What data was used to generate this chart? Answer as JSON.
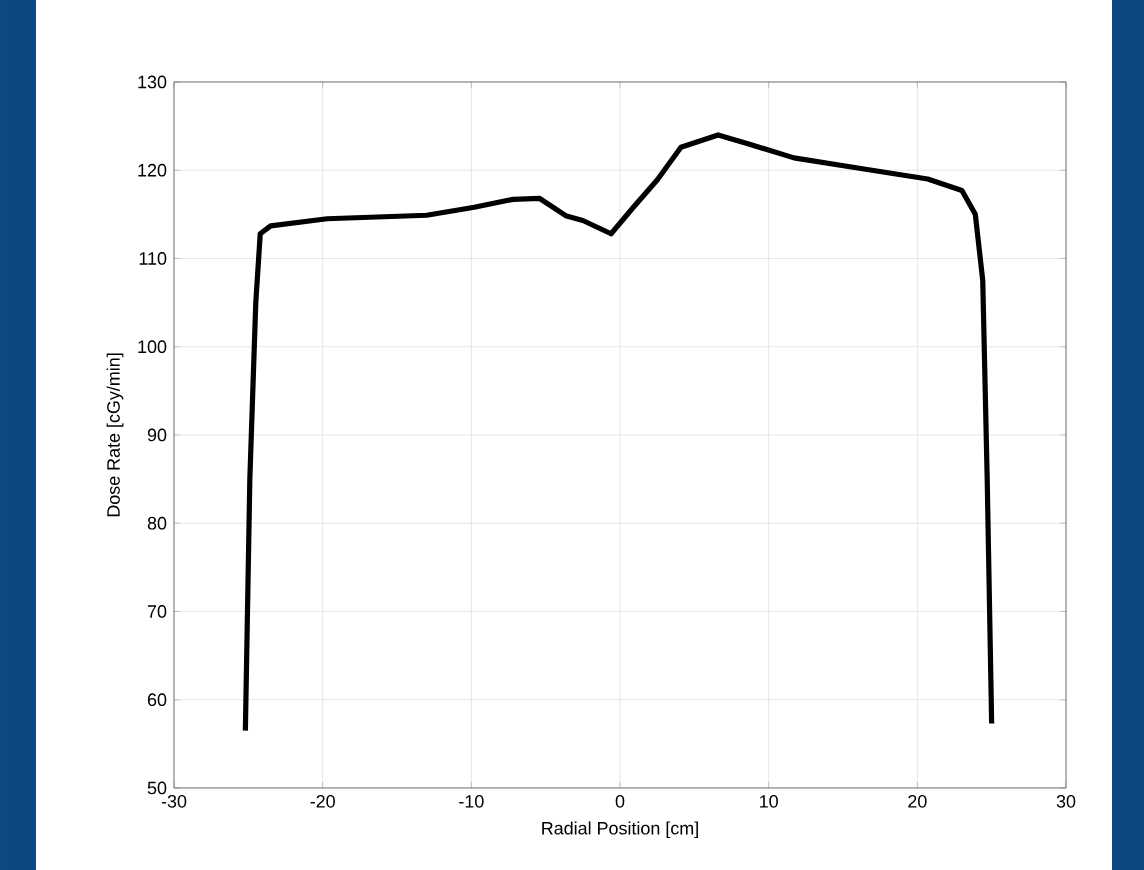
{
  "chart_data": {
    "type": "line",
    "xlabel": "Radial Position [cm]",
    "ylabel": "Dose Rate [cGy/min]",
    "x": [
      -25.2,
      -24.9,
      -24.5,
      -24.2,
      -23.5,
      -19.7,
      -13.0,
      -9.8,
      -7.2,
      -5.4,
      -3.6,
      -2.5,
      -0.6,
      0.9,
      2.5,
      4.1,
      6.6,
      8.6,
      11.7,
      16.2,
      20.7,
      23.0,
      23.9,
      24.4,
      24.7,
      25.0
    ],
    "series": [
      {
        "color": "#000000",
        "values": [
          56.5,
          85,
          105,
          112.8,
          113.7,
          114.5,
          114.9,
          115.8,
          116.7,
          116.8,
          114.8,
          114.3,
          112.8,
          115.8,
          118.9,
          122.6,
          124.0,
          123.0,
          121.4,
          120.2,
          119.0,
          117.7,
          115.0,
          107.5,
          85,
          57.3
        ]
      }
    ],
    "xlim": [
      -30,
      30
    ],
    "ylim": [
      50,
      130
    ],
    "xticks": [
      -30,
      -20,
      -10,
      0,
      10,
      20,
      30
    ],
    "yticks": [
      50,
      60,
      70,
      80,
      90,
      100,
      110,
      120,
      130
    ],
    "grid": true,
    "marker": "none",
    "line_style": "solid"
  }
}
